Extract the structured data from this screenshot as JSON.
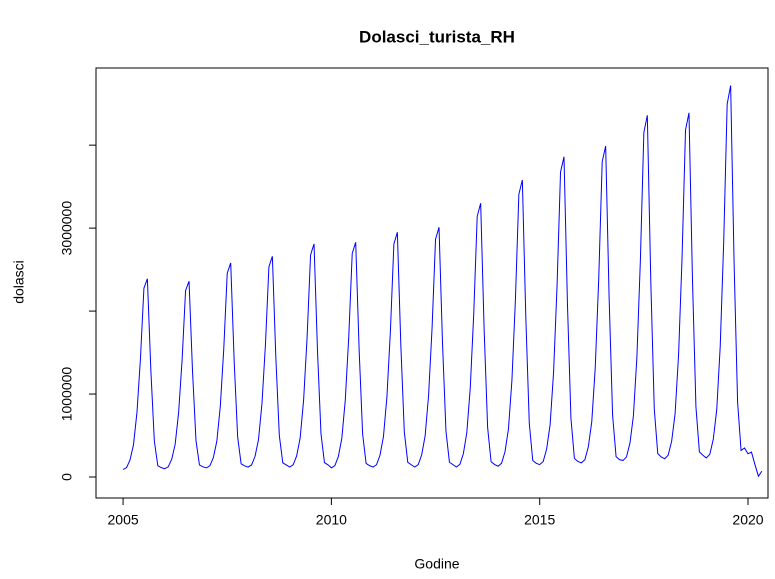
{
  "chart_data": {
    "type": "line",
    "title": "Dolasci_turista_RH",
    "xlabel": "Godine",
    "ylabel": "dolasci",
    "x_start": 2005,
    "frequency": 12,
    "xlim": [
      2004.35,
      2020.48
    ],
    "xticks": [
      2005,
      2010,
      2015,
      2020
    ],
    "ylim": [
      -253000,
      4930000
    ],
    "yticks": [
      0,
      1000000,
      {
        "value": 2000000,
        "label": null
      },
      3000000,
      {
        "value": 4000000,
        "label": null
      }
    ],
    "series": [
      {
        "name": "dolasci",
        "color": "#0000ff",
        "values": [
          90000,
          113000,
          205000,
          389000,
          780000,
          1424000,
          2275000,
          2390000,
          1286000,
          435000,
          136000,
          113000,
          100000,
          123000,
          213000,
          394000,
          778000,
          1411000,
          2247000,
          2360000,
          1275000,
          439000,
          145000,
          123000,
          110000,
          135000,
          234000,
          431000,
          851000,
          1543000,
          2457000,
          2580000,
          1394000,
          481000,
          159000,
          135000,
          120000,
          145000,
          247000,
          450000,
          882000,
          1593000,
          2533000,
          2660000,
          1441000,
          501000,
          171000,
          145000,
          120000,
          147000,
          255000,
          470000,
          927000,
          1680000,
          2676000,
          2810000,
          1519000,
          524000,
          174000,
          147000,
          110000,
          137000,
          246000,
          464000,
          926000,
          1688000,
          2694000,
          2830000,
          1524000,
          518000,
          164000,
          137000,
          120000,
          148000,
          262000,
          488000,
          969000,
          1761000,
          2809000,
          2950000,
          1592000,
          545000,
          177000,
          148000,
          120000,
          149000,
          265000,
          496000,
          987000,
          1796000,
          2866000,
          3010000,
          1623000,
          554000,
          178000,
          149000,
          120000,
          152000,
          279000,
          533000,
          1074000,
          1964000,
          3141000,
          3300000,
          1774000,
          597000,
          184000,
          152000,
          130000,
          165000,
          303000,
          579000,
          1165000,
          2131000,
          3408000,
          3580000,
          1924000,
          648000,
          199000,
          165000,
          150000,
          187000,
          336000,
          632000,
          1263000,
          2302000,
          3675000,
          3860000,
          2079000,
          707000,
          224000,
          187000,
          170000,
          208000,
          361000,
          667000,
          1316000,
          2386000,
          3799000,
          3990000,
          2156000,
          743000,
          246000,
          208000,
          200000,
          242000,
          408000,
          741000,
          1448000,
          2613000,
          4152000,
          4360000,
          2363000,
          824000,
          283000,
          242000,
          220000,
          262000,
          429000,
          762000,
          1471000,
          2639000,
          4182000,
          4390000,
          2388000,
          846000,
          303000,
          262000,
          230000,
          275000,
          455000,
          814000,
          1577000,
          2834000,
          4496000,
          4720000,
          2565000,
          904000,
          320000,
          350000,
          280000,
          300000,
          150000,
          10000,
          70000
        ]
      }
    ]
  }
}
